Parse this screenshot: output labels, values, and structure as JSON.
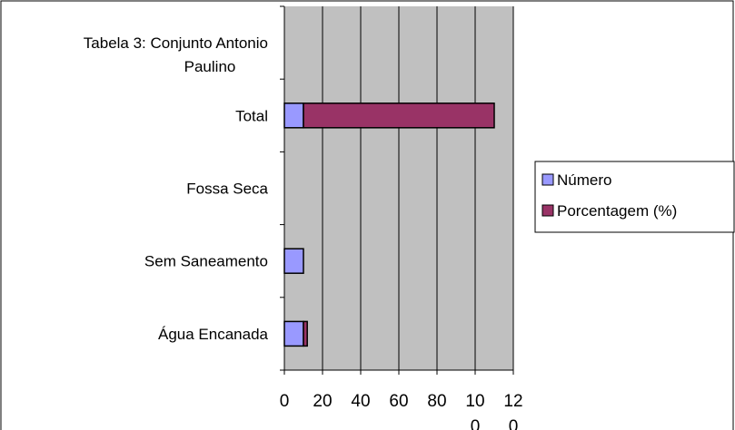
{
  "chart_data": {
    "type": "bar",
    "orientation": "horizontal",
    "stacked": true,
    "categories": [
      "Água Encanada",
      "Sem Saneamento",
      "Fossa Seca",
      "Total",
      "Tabela 3: Conjunto Antonio Paulino"
    ],
    "series": [
      {
        "name": "Número",
        "color": "#9999ff",
        "values": [
          10,
          10,
          0,
          10,
          0
        ]
      },
      {
        "name": "Porcentagem (%)",
        "color": "#993366",
        "values": [
          2,
          0,
          0,
          100,
          0
        ]
      }
    ],
    "xlim": [
      0,
      120
    ],
    "xticks": [
      0,
      20,
      40,
      60,
      80,
      100,
      120
    ],
    "xtick_labels": [
      [
        "0"
      ],
      [
        "20"
      ],
      [
        "40"
      ],
      [
        "60"
      ],
      [
        "80"
      ],
      [
        "10",
        "0"
      ],
      [
        "12",
        "0"
      ]
    ],
    "category_labels": [
      [
        "Água Encanada"
      ],
      [
        "Sem Saneamento"
      ],
      [
        "Fossa Seca"
      ],
      [
        "Total"
      ],
      [
        "Tabela 3: Conjunto Antonio",
        "Paulino"
      ]
    ],
    "grid": "vertical",
    "plot_background": "#c0c0c0",
    "legend_position": "right"
  }
}
